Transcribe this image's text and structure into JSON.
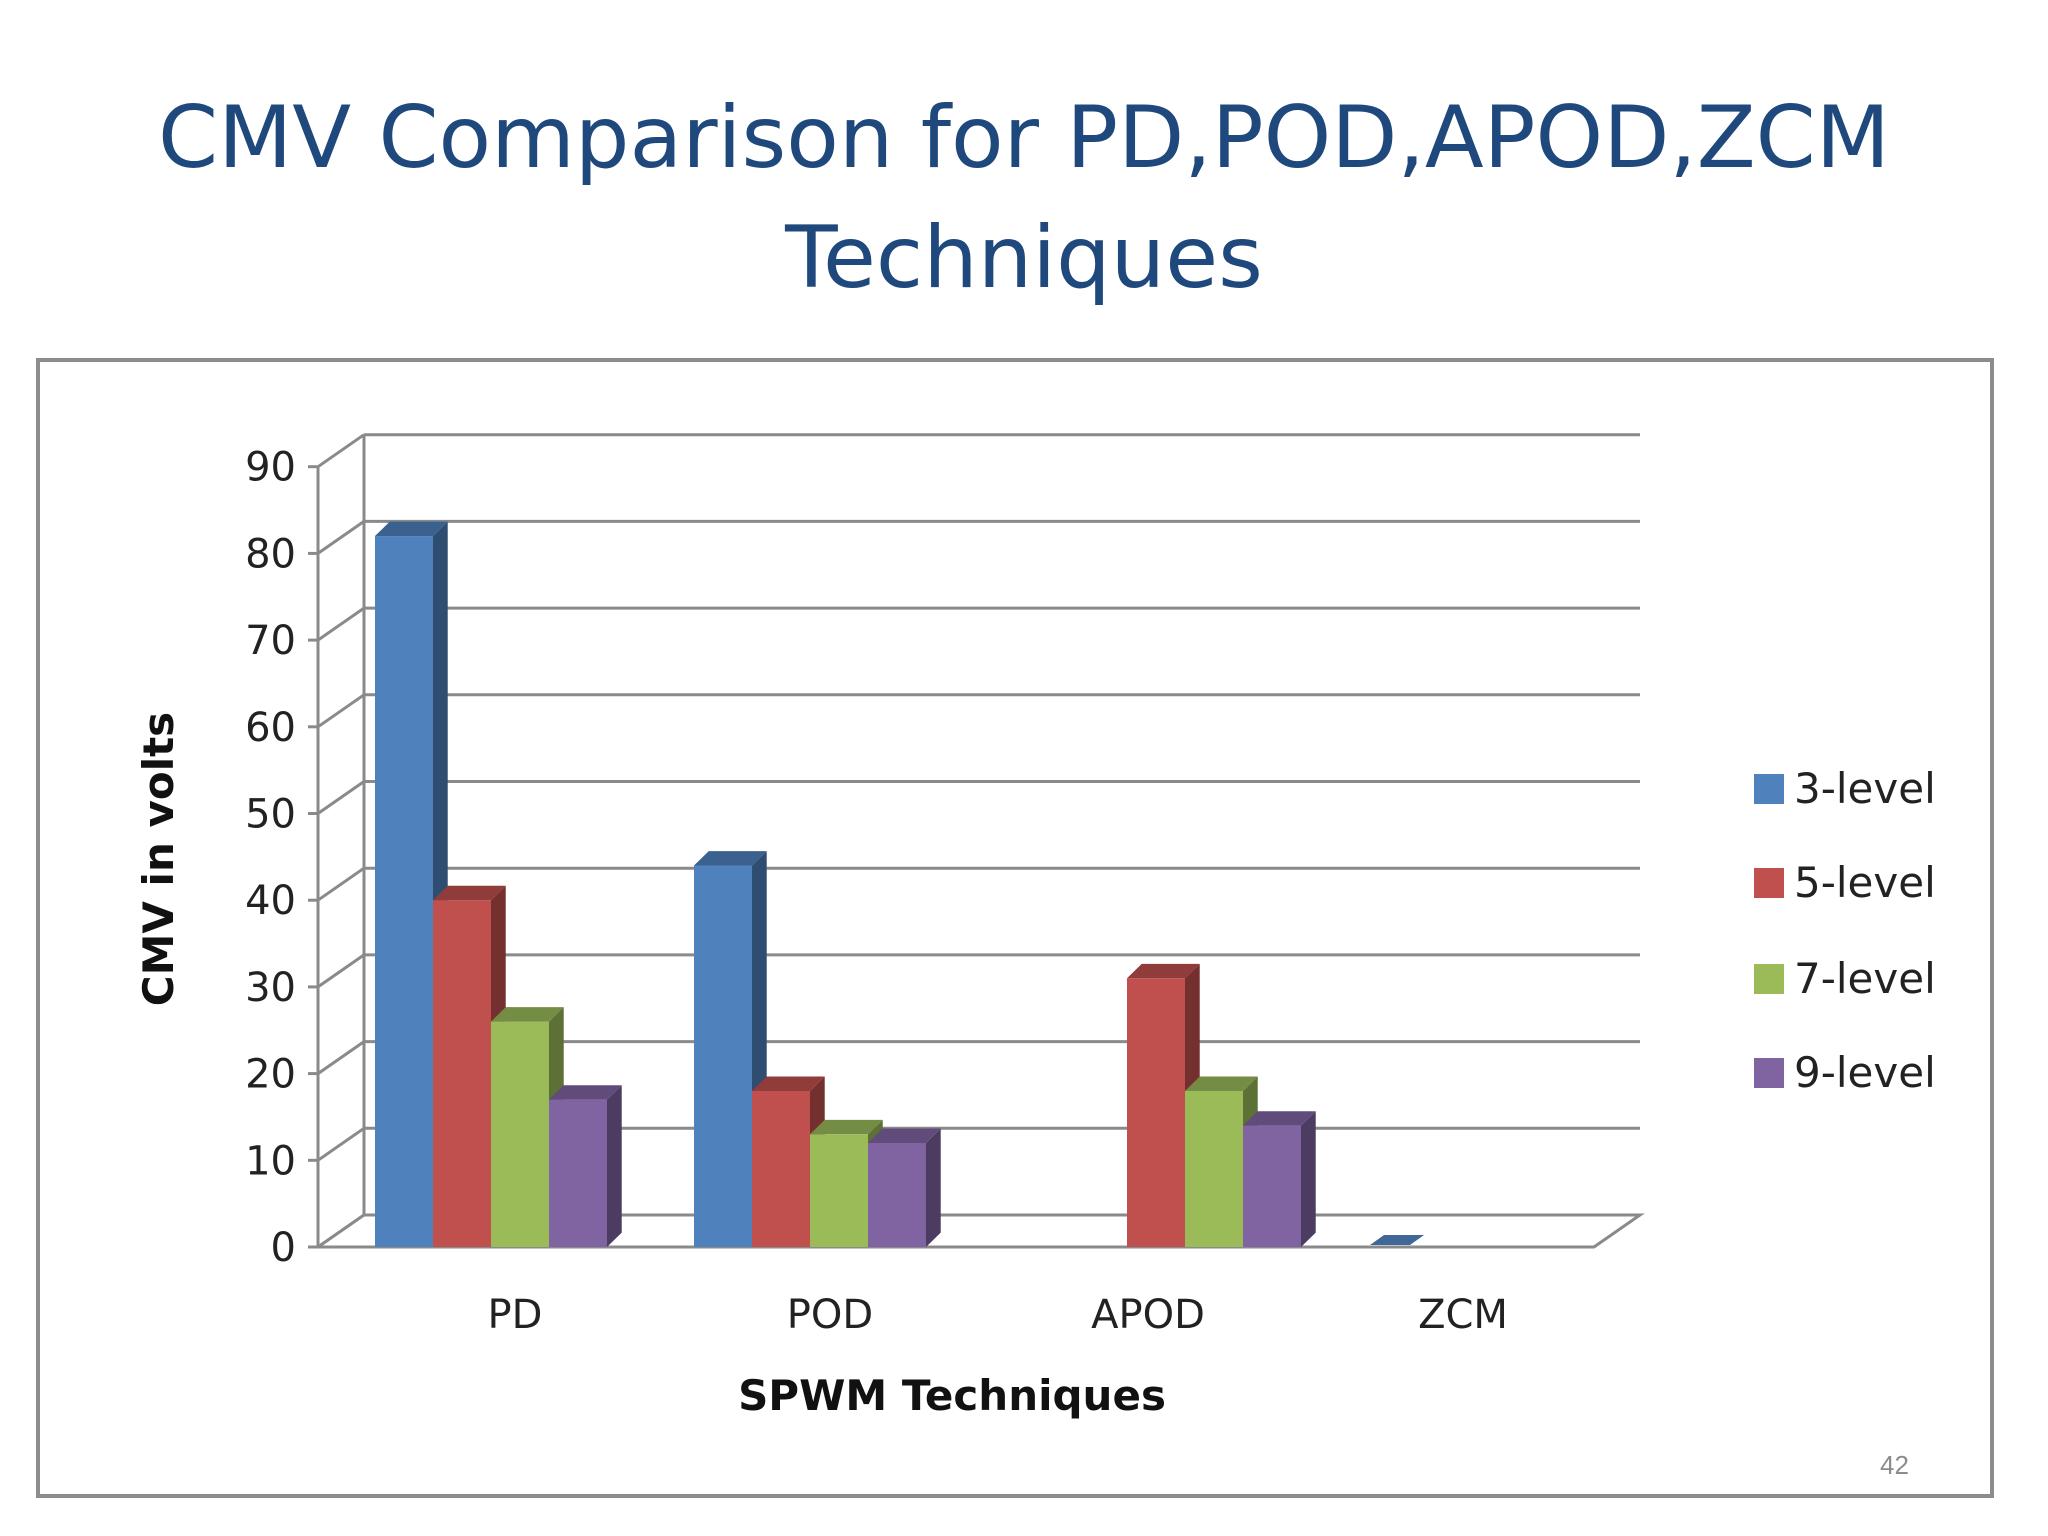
{
  "slide": {
    "title_line1": "CMV Comparison for PD,POD,APOD,ZCM",
    "title_line2": "Techniques",
    "page_number": "42"
  },
  "colors": {
    "title": "#1f497d",
    "3-level": "#4f81bd",
    "5-level": "#c0504d",
    "7-level": "#9bbb59",
    "9-level": "#8064a2"
  },
  "chart_data": {
    "type": "bar",
    "style": "3d-clustered-column",
    "title": "",
    "xlabel": "SPWM Techniques",
    "ylabel": "CMV in volts",
    "categories": [
      "PD",
      "POD",
      "APOD",
      "ZCM"
    ],
    "series": [
      {
        "name": "3-level",
        "values": [
          82,
          44,
          0,
          0
        ]
      },
      {
        "name": "5-level",
        "values": [
          40,
          18,
          31,
          0
        ]
      },
      {
        "name": "7-level",
        "values": [
          26,
          13,
          18,
          0
        ]
      },
      {
        "name": "9-level",
        "values": [
          17,
          12,
          14,
          0
        ]
      }
    ],
    "ylim": [
      0,
      90
    ],
    "yticks": [
      "0",
      "10",
      "20",
      "30",
      "40",
      "50",
      "60",
      "70",
      "80",
      "90"
    ],
    "grid": true,
    "legend": "right"
  }
}
